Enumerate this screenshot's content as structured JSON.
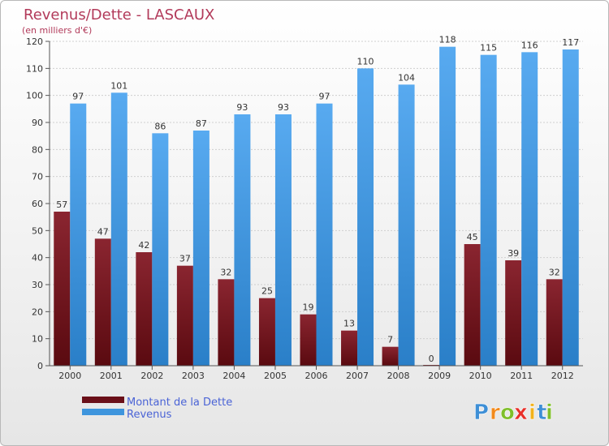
{
  "chart_data": {
    "type": "bar",
    "title": "Revenus/Dette - LASCAUX",
    "subtitle": "(en milliers d'€)",
    "categories": [
      "2000",
      "2001",
      "2002",
      "2003",
      "2004",
      "2005",
      "2006",
      "2007",
      "2008",
      "2009",
      "2010",
      "2011",
      "2012"
    ],
    "series": [
      {
        "name": "Montant de la Dette",
        "color": "#7a1520",
        "values": [
          57,
          47,
          42,
          37,
          32,
          25,
          19,
          13,
          7,
          0,
          45,
          39,
          32
        ]
      },
      {
        "name": "Revenus",
        "color": "#3e95dd",
        "values": [
          97,
          101,
          86,
          87,
          93,
          93,
          97,
          110,
          104,
          118,
          115,
          116,
          117
        ]
      }
    ],
    "ylim": [
      0,
      120
    ],
    "yticks": [
      0,
      10,
      20,
      30,
      40,
      50,
      60,
      70,
      80,
      90,
      100,
      110,
      120
    ],
    "grid": true,
    "legend_position": "bottom-left"
  },
  "logo": {
    "letters": [
      "P",
      "r",
      "o",
      "x",
      "i",
      "t",
      "i"
    ],
    "colors": [
      "#3e8fd6",
      "#f28a1c",
      "#7fbf2a",
      "#e8302a",
      "#f2b21c",
      "#3e8fd6",
      "#7fbf2a"
    ]
  }
}
